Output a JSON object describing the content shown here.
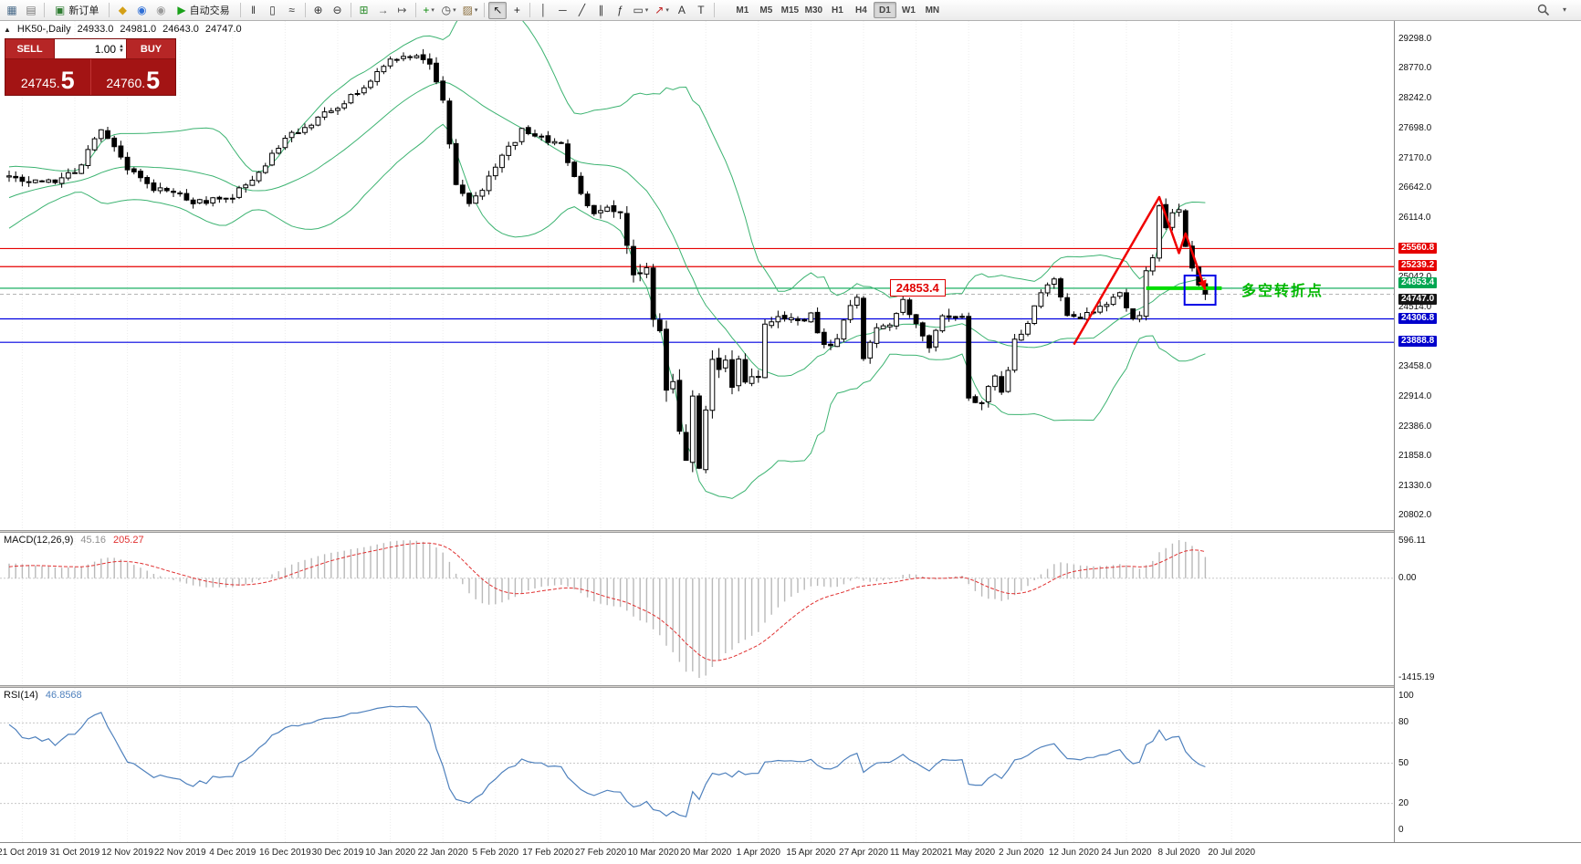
{
  "toolbar": {
    "items": [
      {
        "name": "new-chart-button",
        "glyph": "▦",
        "color": "#4a6b8a"
      },
      {
        "name": "profiles-button",
        "glyph": "▤",
        "color": "#777777"
      },
      {
        "type": "sep"
      },
      {
        "name": "new-order-button",
        "glyph": "▣",
        "color": "#2e7d32",
        "label": "新订单"
      },
      {
        "type": "sep"
      },
      {
        "name": "metaeditor-button",
        "glyph": "◆",
        "color": "#d4a017"
      },
      {
        "name": "market-watch-button",
        "glyph": "◉",
        "color": "#2f6fd6"
      },
      {
        "name": "terminal-button",
        "glyph": "◉",
        "color": "#9a9a9a"
      },
      {
        "name": "autotrading-button",
        "glyph": "▶",
        "color": "#1aa11a",
        "label": "自动交易"
      },
      {
        "type": "sep"
      },
      {
        "name": "bar-chart-button",
        "glyph": "‖",
        "color": "#333333"
      },
      {
        "name": "candlestick-chart-button",
        "glyph": "▯",
        "color": "#333333"
      },
      {
        "name": "line-chart-button",
        "glyph": "≈",
        "color": "#333333"
      },
      {
        "type": "sep"
      },
      {
        "name": "zoom-in-button",
        "glyph": "⊕",
        "color": "#333333"
      },
      {
        "name": "zoom-out-button",
        "glyph": "⊖",
        "color": "#333333"
      },
      {
        "type": "sep"
      },
      {
        "name": "tile-windows-button",
        "glyph": "⊞",
        "color": "#2f8f2f"
      },
      {
        "name": "auto-scroll-button",
        "glyph": "→",
        "color": "#555555"
      },
      {
        "name": "chart-shift-button",
        "glyph": "↦",
        "color": "#555555"
      },
      {
        "type": "sep"
      },
      {
        "name": "indicators-button",
        "glyph": "+",
        "color": "#0a8a0a",
        "caret": true
      },
      {
        "name": "periods-button",
        "glyph": "◷",
        "color": "#444444",
        "caret": true
      },
      {
        "name": "templates-button",
        "glyph": "▨",
        "color": "#8a6d3b",
        "caret": true
      },
      {
        "type": "sep"
      },
      {
        "name": "cursor-button",
        "glyph": "↖",
        "color": "#222222",
        "pressed": true
      },
      {
        "name": "crosshair-button",
        "glyph": "+",
        "color": "#222222"
      },
      {
        "type": "sep"
      },
      {
        "name": "vertical-line-button",
        "glyph": "│",
        "color": "#333333"
      },
      {
        "name": "horizontal-line-button",
        "glyph": "─",
        "color": "#333333"
      },
      {
        "name": "trendline-button",
        "glyph": "╱",
        "color": "#333333"
      },
      {
        "name": "channel-button",
        "glyph": "∥",
        "color": "#333333"
      },
      {
        "name": "fibonacci-button",
        "glyph": "ƒ",
        "color": "#333333"
      },
      {
        "name": "shapes-button",
        "glyph": "▭",
        "color": "#333333",
        "caret": true
      },
      {
        "name": "arrows-button",
        "glyph": "↗",
        "color": "#c02020",
        "caret": true
      },
      {
        "name": "text-button",
        "glyph": "A",
        "color": "#333333"
      },
      {
        "name": "text-label-button",
        "glyph": "T",
        "color": "#333333"
      },
      {
        "type": "sep"
      }
    ],
    "timeframes": [
      "M1",
      "M5",
      "M15",
      "M30",
      "H1",
      "H4",
      "D1",
      "W1",
      "MN"
    ],
    "active_timeframe": "D1"
  },
  "chart": {
    "symbol_info": "HK50-,Daily",
    "ohlc": {
      "open": "24933.0",
      "high": "24981.0",
      "low": "24643.0",
      "close": "24747.0"
    },
    "one_click": {
      "sell_label": "SELL",
      "buy_label": "BUY",
      "volume": "1.00",
      "sell_price_small": "24745.",
      "sell_price_big": "5",
      "buy_price_small": "24760.",
      "buy_price_big": "5"
    },
    "annotations": {
      "level_label": "24853.4",
      "turning_point": "多空转折点"
    }
  },
  "chart_data": {
    "type": "candlestick",
    "symbol": "HK50",
    "timeframe": "Daily",
    "last_ohlc": {
      "open": 24933.0,
      "high": 24981.0,
      "low": 24643.0,
      "close": 24747.0
    },
    "y_axis": {
      "range": [
        20540,
        29620
      ],
      "regular_labels": [
        "29298.0",
        "28770.0",
        "28242.0",
        "27698.0",
        "27170.0",
        "26642.0",
        "26114.0",
        "25042.0",
        "24514.0",
        "23458.0",
        "22914.0",
        "22386.0",
        "21858.0",
        "21330.0",
        "20802.0"
      ],
      "price_levels": [
        {
          "price": 25560.8,
          "label": "25560.8",
          "color": "#e60000",
          "badge": "red"
        },
        {
          "price": 25239.2,
          "label": "25239.2",
          "color": "#e60000",
          "badge": "red"
        },
        {
          "price": 24853.4,
          "label": "24853.4",
          "color": "#00a651",
          "badge": "green"
        },
        {
          "price": 24747.0,
          "label": "24747.0",
          "color": "#aaaaaa",
          "badge": "black",
          "role": "bid"
        },
        {
          "price": 24306.8,
          "label": "24306.8",
          "color": "#0000e0",
          "badge": "blue"
        },
        {
          "price": 23888.8,
          "label": "23888.8",
          "color": "#0000e0",
          "badge": "blue"
        }
      ]
    },
    "x_axis": {
      "labels": [
        "21 Oct 2019",
        "31 Oct 2019",
        "12 Nov 2019",
        "22 Nov 2019",
        "4 Dec 2019",
        "16 Dec 2019",
        "30 Dec 2019",
        "10 Jan 2020",
        "22 Jan 2020",
        "5 Feb 2020",
        "17 Feb 2020",
        "27 Feb 2020",
        "10 Mar 2020",
        "20 Mar 2020",
        "1 Apr 2020",
        "15 Apr 2020",
        "27 Apr 2020",
        "11 May 2020",
        "21 May 2020",
        "2 Jun 2020",
        "12 Jun 2020",
        "24 Jun 2020",
        "8 Jul 2020",
        "20 Jul 2020"
      ]
    },
    "bollinger": {
      "period": 20,
      "deviation": 2,
      "color": "#3CB371"
    },
    "candles": {
      "count": 183,
      "warmup": 45,
      "close_path": [
        [
          -45,
          26200
        ],
        [
          -38,
          26650
        ],
        [
          -30,
          25950
        ],
        [
          -22,
          25750
        ],
        [
          -14,
          26300
        ],
        [
          -7,
          26600
        ],
        [
          0,
          26850
        ],
        [
          5,
          26700
        ],
        [
          10,
          26900
        ],
        [
          14,
          27650
        ],
        [
          18,
          27000
        ],
        [
          22,
          26650
        ],
        [
          26,
          26500
        ],
        [
          28,
          26350
        ],
        [
          31,
          26450
        ],
        [
          34,
          26500
        ],
        [
          38,
          26900
        ],
        [
          42,
          27550
        ],
        [
          46,
          27800
        ],
        [
          50,
          28100
        ],
        [
          54,
          28450
        ],
        [
          58,
          28900
        ],
        [
          62,
          29050
        ],
        [
          64,
          28800
        ],
        [
          66,
          28200
        ],
        [
          68,
          26750
        ],
        [
          70,
          26350
        ],
        [
          72,
          26600
        ],
        [
          75,
          27200
        ],
        [
          78,
          27650
        ],
        [
          81,
          27550
        ],
        [
          84,
          27400
        ],
        [
          86,
          26800
        ],
        [
          89,
          26150
        ],
        [
          91,
          26300
        ],
        [
          93,
          26150
        ],
        [
          95,
          25050
        ],
        [
          97,
          25300
        ],
        [
          98,
          24300
        ],
        [
          99,
          24000
        ],
        [
          100,
          23060
        ],
        [
          101,
          23250
        ],
        [
          102,
          22290
        ],
        [
          103,
          21710
        ],
        [
          104,
          22800
        ],
        [
          105,
          21700
        ],
        [
          106,
          22660
        ],
        [
          107,
          23530
        ],
        [
          108,
          23350
        ],
        [
          109,
          23480
        ],
        [
          110,
          23180
        ],
        [
          111,
          23600
        ],
        [
          112,
          23090
        ],
        [
          113,
          23280
        ],
        [
          114,
          23240
        ],
        [
          115,
          24250
        ],
        [
          116,
          24300
        ],
        [
          117,
          24280
        ],
        [
          118,
          24240
        ],
        [
          120,
          24280
        ],
        [
          122,
          24380
        ],
        [
          124,
          23790
        ],
        [
          126,
          23980
        ],
        [
          128,
          24580
        ],
        [
          129,
          24640
        ],
        [
          130,
          23610
        ],
        [
          132,
          24140
        ],
        [
          134,
          24230
        ],
        [
          136,
          24600
        ],
        [
          138,
          24250
        ],
        [
          140,
          23800
        ],
        [
          142,
          24390
        ],
        [
          144,
          24400
        ],
        [
          145,
          24280
        ],
        [
          146,
          22930
        ],
        [
          148,
          22840
        ],
        [
          150,
          23300
        ],
        [
          151,
          22960
        ],
        [
          153,
          23900
        ],
        [
          155,
          24280
        ],
        [
          157,
          24770
        ],
        [
          159,
          25060
        ],
        [
          161,
          24350
        ],
        [
          163,
          24340
        ],
        [
          165,
          24470
        ],
        [
          167,
          24510
        ],
        [
          169,
          24780
        ],
        [
          170,
          24550
        ],
        [
          171,
          24300
        ],
        [
          172,
          24430
        ],
        [
          173,
          25120
        ],
        [
          174,
          25370
        ],
        [
          175,
          26340
        ],
        [
          176,
          25980
        ],
        [
          177,
          26130
        ],
        [
          178,
          26210
        ],
        [
          179,
          25650
        ],
        [
          180,
          25250
        ],
        [
          181,
          24950
        ],
        [
          182,
          24750
        ]
      ],
      "volatility": [
        [
          -45,
          1.2
        ],
        [
          60,
          0.9
        ],
        [
          64,
          1.2
        ],
        [
          72,
          1.0
        ],
        [
          84,
          1.0
        ],
        [
          88,
          1.3
        ],
        [
          95,
          1.8
        ],
        [
          99,
          2.4
        ],
        [
          105,
          2.4
        ],
        [
          110,
          1.9
        ],
        [
          115,
          1.6
        ],
        [
          120,
          1.2
        ],
        [
          140,
          1.1
        ],
        [
          145,
          1.7
        ],
        [
          150,
          1.3
        ],
        [
          155,
          1.1
        ],
        [
          160,
          1.0
        ],
        [
          170,
          1.0
        ],
        [
          174,
          1.4
        ],
        [
          178,
          1.2
        ],
        [
          182,
          0.9
        ]
      ]
    },
    "macd": {
      "label": "MACD(12,26,9)",
      "value_main": "45.16",
      "value_signal": "205.27",
      "axis_labels": [
        "596.11",
        "0.00",
        "-1415.19"
      ],
      "histogram_color": "#b9b9b9",
      "signal_color": "#e03030"
    },
    "rsi": {
      "label": "RSI(14)",
      "value": "46.8568",
      "axis_labels": [
        "100",
        "80",
        "50",
        "20",
        "0"
      ],
      "levels": [
        80,
        50,
        20
      ],
      "color": "#4f81bd"
    },
    "overlays": {
      "zigzag": {
        "color": "#f00000",
        "points": [
          [
            162,
            23850
          ],
          [
            175,
            26480
          ],
          [
            178,
            25480
          ],
          [
            179,
            25830
          ],
          [
            182,
            24830
          ]
        ]
      },
      "blue_box": {
        "color": "#0000e6",
        "from_index": 179.4,
        "to_index": 183.0,
        "price_top": 25080,
        "price_bottom": 24560
      },
      "green_segment": {
        "color": "#00dd00",
        "from_index": 173,
        "to_index": 184.5,
        "price": 24853.4
      },
      "level_label_box": {
        "text": "24853.4",
        "x_index": 134,
        "price": 24860,
        "color": "#e00000"
      },
      "turning_point": {
        "text": "多空转折点",
        "x_index": 187.5,
        "price": 24880,
        "color": "#00b800"
      }
    }
  }
}
